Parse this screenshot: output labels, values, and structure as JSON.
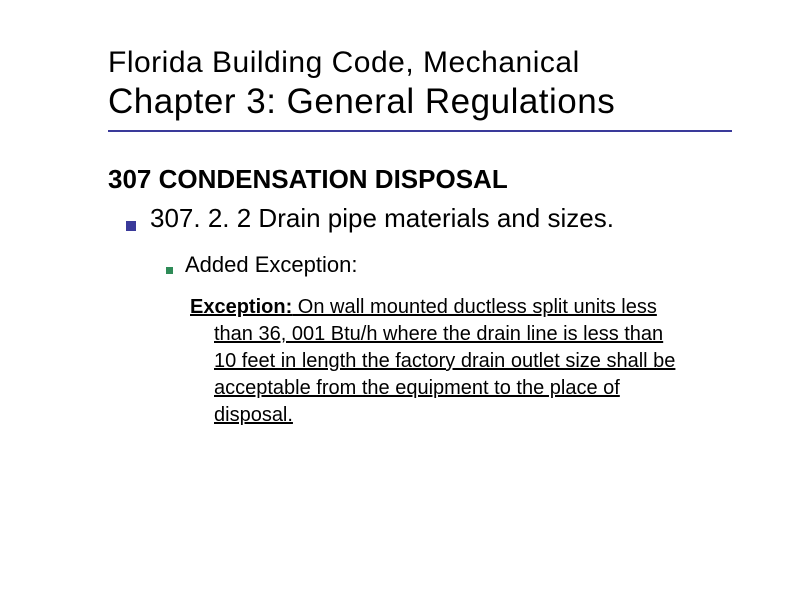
{
  "header": {
    "line1": "Florida Building Code, Mechanical",
    "line2": "Chapter 3: General Regulations"
  },
  "section": {
    "title": "307 CONDENSATION DISPOSAL",
    "item": "307. 2. 2 Drain pipe materials and sizes.",
    "subitem": "Added Exception:",
    "exception_label": "Exception:",
    "exception_body": " On wall mounted ductless split units less than 36, 001 Btu/h where the drain line is less than 10 feet in length the factory drain outlet size shall be acceptable from the equipment to the place of disposal."
  },
  "colors": {
    "underline": "#3a3a9a",
    "bullet_primary": "#3a3a9a",
    "bullet_secondary": "#2e8b57",
    "text": "#000000",
    "background": "#ffffff"
  },
  "fonts": {
    "title_small_size": 30,
    "title_large_size": 35,
    "section_size": 26,
    "bullet_size": 26,
    "subbullet_size": 22,
    "exception_size": 20,
    "family": "Verdana"
  }
}
